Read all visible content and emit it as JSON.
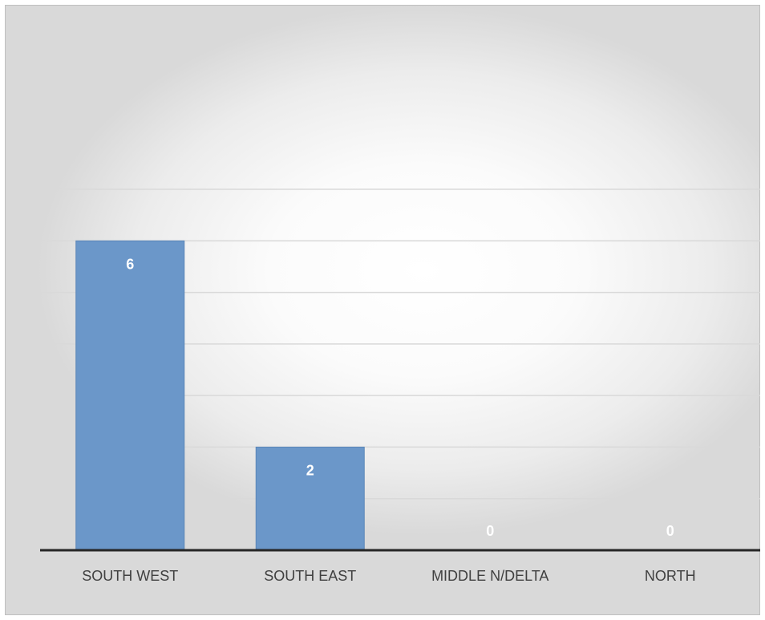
{
  "chart_data": {
    "type": "bar",
    "categories": [
      "SOUTH WEST",
      "SOUTH EAST",
      "MIDDLE N/DELTA",
      "NORTH"
    ],
    "values": [
      6,
      2,
      0,
      0
    ],
    "data_labels": [
      "6",
      "2",
      "0",
      "0"
    ],
    "ylim": [
      0,
      7
    ],
    "grid": true,
    "legend": "none",
    "colors": {
      "bar": "#6b97c9",
      "bar_edge": "#5a86b8",
      "gridline": "#d9d9d9",
      "baseline": "#262626",
      "data_label": "#ffffff",
      "category_label": "#404040"
    }
  }
}
